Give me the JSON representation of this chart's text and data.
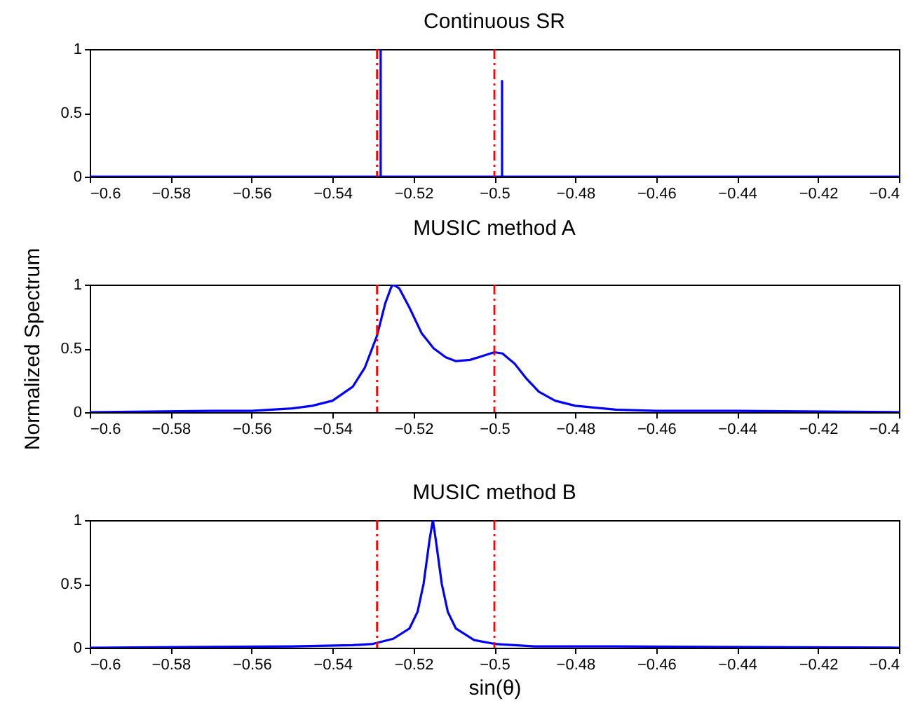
{
  "chart_data": [
    {
      "type": "line",
      "title": "Continuous SR",
      "xlim": [
        -0.6,
        -0.4
      ],
      "ylim": [
        0,
        1
      ],
      "xticks": [
        {
          "value": -0.6,
          "label": "−0.6"
        },
        {
          "value": -0.58,
          "label": "−0.58"
        },
        {
          "value": -0.56,
          "label": "−0.56"
        },
        {
          "value": -0.54,
          "label": "−0.54"
        },
        {
          "value": -0.52,
          "label": "−0.52"
        },
        {
          "value": -0.5,
          "label": "−0.5"
        },
        {
          "value": -0.48,
          "label": "−0.48"
        },
        {
          "value": -0.46,
          "label": "−0.46"
        },
        {
          "value": -0.44,
          "label": "−0.44"
        },
        {
          "value": -0.42,
          "label": "−0.42"
        },
        {
          "value": -0.4,
          "label": "−0.4"
        }
      ],
      "yticks": [
        0,
        0.5,
        1
      ],
      "series": [
        {
          "color": "#0000ff",
          "x": [
            -0.6,
            -0.5281,
            -0.5281,
            -0.5281,
            -0.4981,
            -0.4981,
            -0.4981,
            -0.4
          ],
          "values": [
            0,
            0,
            1,
            0,
            0,
            0.75,
            0,
            0
          ]
        }
      ],
      "ref_lines": [
        {
          "axis": "x",
          "value": -0.529,
          "color": "#ff0000",
          "line_style": "dashed"
        },
        {
          "axis": "x",
          "value": -0.5,
          "color": "#ff0000",
          "line_style": "dashed"
        }
      ]
    },
    {
      "type": "line",
      "title": "MUSIC method A",
      "ylabel": "Normalized Spectrum",
      "xlim": [
        -0.6,
        -0.4
      ],
      "ylim": [
        0,
        1
      ],
      "xticks": [
        {
          "value": -0.6,
          "label": "−0.6"
        },
        {
          "value": -0.58,
          "label": "−0.58"
        },
        {
          "value": -0.56,
          "label": "−0.56"
        },
        {
          "value": -0.54,
          "label": "−0.54"
        },
        {
          "value": -0.52,
          "label": "−0.52"
        },
        {
          "value": -0.5,
          "label": "−0.5"
        },
        {
          "value": -0.48,
          "label": "−0.48"
        },
        {
          "value": -0.46,
          "label": "−0.46"
        },
        {
          "value": -0.44,
          "label": "−0.44"
        },
        {
          "value": -0.42,
          "label": "−0.42"
        },
        {
          "value": -0.4,
          "label": "−0.4"
        }
      ],
      "yticks": [
        0,
        0.5,
        1
      ],
      "series": [
        {
          "color": "#0000ff",
          "x": [
            -0.6,
            -0.57,
            -0.56,
            -0.55,
            -0.545,
            -0.54,
            -0.535,
            -0.532,
            -0.529,
            -0.527,
            -0.5255,
            -0.525,
            -0.5235,
            -0.521,
            -0.518,
            -0.515,
            -0.512,
            -0.5095,
            -0.506,
            -0.503,
            -0.5,
            -0.498,
            -0.495,
            -0.492,
            -0.489,
            -0.485,
            -0.48,
            -0.47,
            -0.46,
            -0.44,
            -0.4
          ],
          "values": [
            0,
            0.01,
            0.01,
            0.03,
            0.05,
            0.09,
            0.2,
            0.35,
            0.6,
            0.85,
            0.98,
            1,
            0.97,
            0.82,
            0.62,
            0.5,
            0.43,
            0.4,
            0.41,
            0.44,
            0.47,
            0.46,
            0.38,
            0.26,
            0.16,
            0.09,
            0.05,
            0.02,
            0.01,
            0.01,
            0
          ]
        }
      ],
      "ref_lines": [
        {
          "axis": "x",
          "value": -0.529,
          "color": "#ff0000",
          "line_style": "dashed"
        },
        {
          "axis": "x",
          "value": -0.5,
          "color": "#ff0000",
          "line_style": "dashed"
        }
      ]
    },
    {
      "type": "line",
      "title": "MUSIC method B",
      "xlabel": "sin(θ)",
      "xlim": [
        -0.6,
        -0.4
      ],
      "ylim": [
        0,
        1
      ],
      "xticks": [
        {
          "value": -0.6,
          "label": "−0.6"
        },
        {
          "value": -0.58,
          "label": "−0.58"
        },
        {
          "value": -0.56,
          "label": "−0.56"
        },
        {
          "value": -0.54,
          "label": "−0.54"
        },
        {
          "value": -0.52,
          "label": "−0.52"
        },
        {
          "value": -0.5,
          "label": "−0.5"
        },
        {
          "value": -0.48,
          "label": "−0.48"
        },
        {
          "value": -0.46,
          "label": "−0.46"
        },
        {
          "value": -0.44,
          "label": "−0.44"
        },
        {
          "value": -0.42,
          "label": "−0.42"
        },
        {
          "value": -0.4,
          "label": "−0.4"
        }
      ],
      "yticks": [
        0,
        0.5,
        1
      ],
      "series": [
        {
          "color": "#0000ff",
          "x": [
            -0.6,
            -0.55,
            -0.535,
            -0.53,
            -0.525,
            -0.521,
            -0.519,
            -0.5175,
            -0.516,
            -0.5152,
            -0.5145,
            -0.513,
            -0.5115,
            -0.5095,
            -0.505,
            -0.5,
            -0.49,
            -0.47,
            -0.4
          ],
          "values": [
            0,
            0.01,
            0.02,
            0.03,
            0.07,
            0.15,
            0.28,
            0.5,
            0.85,
            1,
            0.85,
            0.5,
            0.28,
            0.15,
            0.06,
            0.03,
            0.01,
            0.01,
            0
          ]
        }
      ],
      "ref_lines": [
        {
          "axis": "x",
          "value": -0.529,
          "color": "#ff0000",
          "line_style": "dashed"
        },
        {
          "axis": "x",
          "value": -0.5,
          "color": "#ff0000",
          "line_style": "dashed"
        }
      ]
    }
  ]
}
